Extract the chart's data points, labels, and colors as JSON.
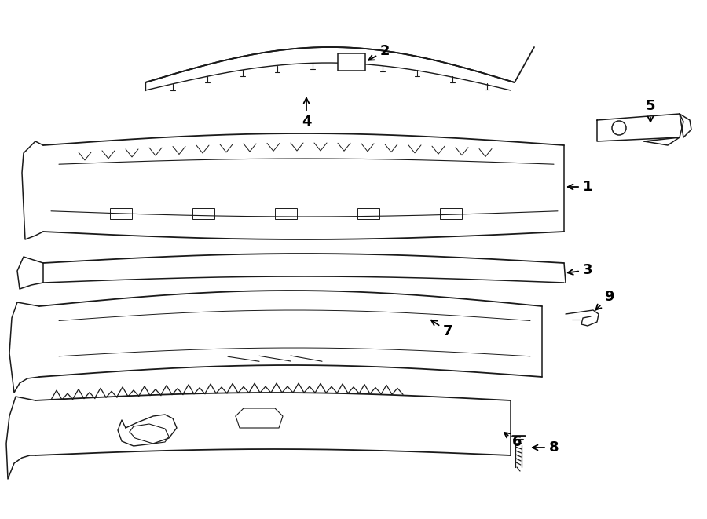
{
  "bg_color": "#ffffff",
  "line_color": "#1a1a1a",
  "line_width": 1.1,
  "fig_width": 9.0,
  "fig_height": 6.61,
  "dpi": 100
}
